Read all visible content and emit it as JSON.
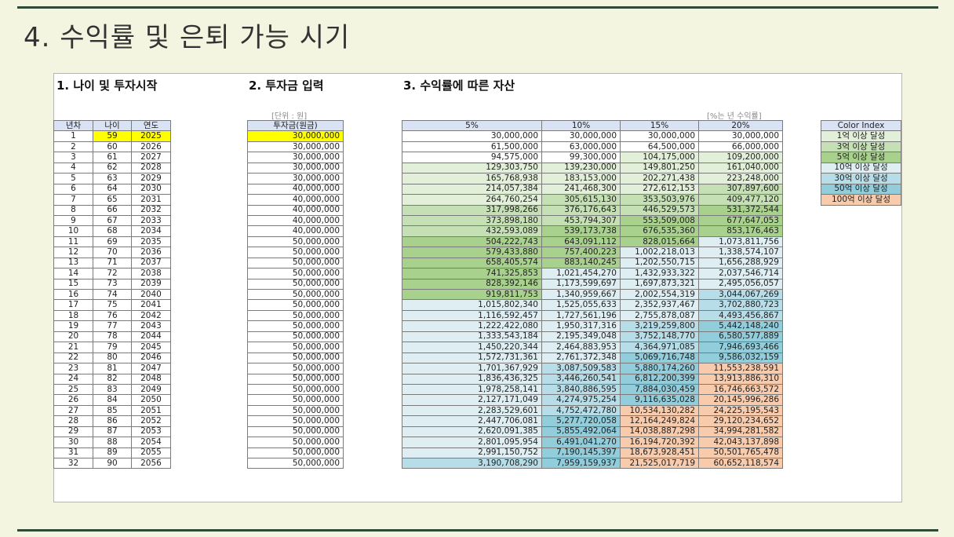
{
  "slide_title": "4. 수익률 및 은퇴 가능 시기",
  "sections": {
    "age": "1. 나이 및 투자시작",
    "investment": "2. 투자금 입력",
    "assets": "3. 수익률에 따른 자산"
  },
  "notes": {
    "unit": "[단위 : 원]",
    "rate": "[%는 년 수익률]"
  },
  "headers": {
    "year": "년차",
    "age": "나이",
    "calendar": "연도",
    "principal": "투자금(원금)",
    "rates": [
      "5%",
      "10%",
      "15%",
      "20%"
    ]
  },
  "legend": {
    "header": "Color Index",
    "items": [
      {
        "label": "1억 이상 달성",
        "color": "#e2f0d9"
      },
      {
        "label": "3억 이상 달성",
        "color": "#c5e0b4"
      },
      {
        "label": "5억 이상 달성",
        "color": "#a9d18e"
      },
      {
        "label": "10억 이상 달성",
        "color": "#deeef3"
      },
      {
        "label": "30억 이상 달성",
        "color": "#b7dde8"
      },
      {
        "label": "50억 이상 달성",
        "color": "#92cddc"
      },
      {
        "label": "100억 이상 달성",
        "color": "#f8cbad"
      }
    ]
  },
  "highlight_color": "#ffff00",
  "rows": [
    {
      "y": "1",
      "a": "59",
      "c": "2025",
      "p": "30,000,000",
      "v": [
        "30,000,000",
        "30,000,000",
        "30,000,000",
        "30,000,000"
      ]
    },
    {
      "y": "2",
      "a": "60",
      "c": "2026",
      "p": "30,000,000",
      "v": [
        "61,500,000",
        "63,000,000",
        "64,500,000",
        "66,000,000"
      ]
    },
    {
      "y": "3",
      "a": "61",
      "c": "2027",
      "p": "30,000,000",
      "v": [
        "94,575,000",
        "99,300,000",
        "104,175,000",
        "109,200,000"
      ]
    },
    {
      "y": "4",
      "a": "62",
      "c": "2028",
      "p": "30,000,000",
      "v": [
        "129,303,750",
        "139,230,000",
        "149,801,250",
        "161,040,000"
      ]
    },
    {
      "y": "5",
      "a": "63",
      "c": "2029",
      "p": "30,000,000",
      "v": [
        "165,768,938",
        "183,153,000",
        "202,271,438",
        "223,248,000"
      ]
    },
    {
      "y": "6",
      "a": "64",
      "c": "2030",
      "p": "40,000,000",
      "v": [
        "214,057,384",
        "241,468,300",
        "272,612,153",
        "307,897,600"
      ]
    },
    {
      "y": "7",
      "a": "65",
      "c": "2031",
      "p": "40,000,000",
      "v": [
        "264,760,254",
        "305,615,130",
        "353,503,976",
        "409,477,120"
      ]
    },
    {
      "y": "8",
      "a": "66",
      "c": "2032",
      "p": "40,000,000",
      "v": [
        "317,998,266",
        "376,176,643",
        "446,529,573",
        "531,372,544"
      ]
    },
    {
      "y": "9",
      "a": "67",
      "c": "2033",
      "p": "40,000,000",
      "v": [
        "373,898,180",
        "453,794,307",
        "553,509,008",
        "677,647,053"
      ]
    },
    {
      "y": "10",
      "a": "68",
      "c": "2034",
      "p": "40,000,000",
      "v": [
        "432,593,089",
        "539,173,738",
        "676,535,360",
        "853,176,463"
      ]
    },
    {
      "y": "11",
      "a": "69",
      "c": "2035",
      "p": "50,000,000",
      "v": [
        "504,222,743",
        "643,091,112",
        "828,015,664",
        "1,073,811,756"
      ]
    },
    {
      "y": "12",
      "a": "70",
      "c": "2036",
      "p": "50,000,000",
      "v": [
        "579,433,880",
        "757,400,223",
        "1,002,218,013",
        "1,338,574,107"
      ]
    },
    {
      "y": "13",
      "a": "71",
      "c": "2037",
      "p": "50,000,000",
      "v": [
        "658,405,574",
        "883,140,245",
        "1,202,550,715",
        "1,656,288,929"
      ]
    },
    {
      "y": "14",
      "a": "72",
      "c": "2038",
      "p": "50,000,000",
      "v": [
        "741,325,853",
        "1,021,454,270",
        "1,432,933,322",
        "2,037,546,714"
      ]
    },
    {
      "y": "15",
      "a": "73",
      "c": "2039",
      "p": "50,000,000",
      "v": [
        "828,392,146",
        "1,173,599,697",
        "1,697,873,321",
        "2,495,056,057"
      ]
    },
    {
      "y": "16",
      "a": "74",
      "c": "2040",
      "p": "50,000,000",
      "v": [
        "919,811,753",
        "1,340,959,667",
        "2,002,554,319",
        "3,044,067,269"
      ]
    },
    {
      "y": "17",
      "a": "75",
      "c": "2041",
      "p": "50,000,000",
      "v": [
        "1,015,802,340",
        "1,525,055,633",
        "2,352,937,467",
        "3,702,880,723"
      ]
    },
    {
      "y": "18",
      "a": "76",
      "c": "2042",
      "p": "50,000,000",
      "v": [
        "1,116,592,457",
        "1,727,561,196",
        "2,755,878,087",
        "4,493,456,867"
      ]
    },
    {
      "y": "19",
      "a": "77",
      "c": "2043",
      "p": "50,000,000",
      "v": [
        "1,222,422,080",
        "1,950,317,316",
        "3,219,259,800",
        "5,442,148,240"
      ]
    },
    {
      "y": "20",
      "a": "78",
      "c": "2044",
      "p": "50,000,000",
      "v": [
        "1,333,543,184",
        "2,195,349,048",
        "3,752,148,770",
        "6,580,577,889"
      ]
    },
    {
      "y": "21",
      "a": "79",
      "c": "2045",
      "p": "50,000,000",
      "v": [
        "1,450,220,344",
        "2,464,883,953",
        "4,364,971,085",
        "7,946,693,466"
      ]
    },
    {
      "y": "22",
      "a": "80",
      "c": "2046",
      "p": "50,000,000",
      "v": [
        "1,572,731,361",
        "2,761,372,348",
        "5,069,716,748",
        "9,586,032,159"
      ]
    },
    {
      "y": "23",
      "a": "81",
      "c": "2047",
      "p": "50,000,000",
      "v": [
        "1,701,367,929",
        "3,087,509,583",
        "5,880,174,260",
        "11,553,238,591"
      ]
    },
    {
      "y": "24",
      "a": "82",
      "c": "2048",
      "p": "50,000,000",
      "v": [
        "1,836,436,325",
        "3,446,260,541",
        "6,812,200,399",
        "13,913,886,310"
      ]
    },
    {
      "y": "25",
      "a": "83",
      "c": "2049",
      "p": "50,000,000",
      "v": [
        "1,978,258,141",
        "3,840,886,595",
        "7,884,030,459",
        "16,746,663,572"
      ]
    },
    {
      "y": "26",
      "a": "84",
      "c": "2050",
      "p": "50,000,000",
      "v": [
        "2,127,171,049",
        "4,274,975,254",
        "9,116,635,028",
        "20,145,996,286"
      ]
    },
    {
      "y": "27",
      "a": "85",
      "c": "2051",
      "p": "50,000,000",
      "v": [
        "2,283,529,601",
        "4,752,472,780",
        "10,534,130,282",
        "24,225,195,543"
      ]
    },
    {
      "y": "28",
      "a": "86",
      "c": "2052",
      "p": "50,000,000",
      "v": [
        "2,447,706,081",
        "5,277,720,058",
        "12,164,249,824",
        "29,120,234,652"
      ]
    },
    {
      "y": "29",
      "a": "87",
      "c": "2053",
      "p": "50,000,000",
      "v": [
        "2,620,091,385",
        "5,855,492,064",
        "14,038,887,298",
        "34,994,281,582"
      ]
    },
    {
      "y": "30",
      "a": "88",
      "c": "2054",
      "p": "50,000,000",
      "v": [
        "2,801,095,954",
        "6,491,041,270",
        "16,194,720,392",
        "42,043,137,898"
      ]
    },
    {
      "y": "31",
      "a": "89",
      "c": "2055",
      "p": "50,000,000",
      "v": [
        "2,991,150,752",
        "7,190,145,397",
        "18,673,928,451",
        "50,501,765,478"
      ]
    },
    {
      "y": "32",
      "a": "90",
      "c": "2056",
      "p": "50,000,000",
      "v": [
        "3,190,708,290",
        "7,959,159,937",
        "21,525,017,719",
        "60,652,118,574"
      ]
    }
  ]
}
